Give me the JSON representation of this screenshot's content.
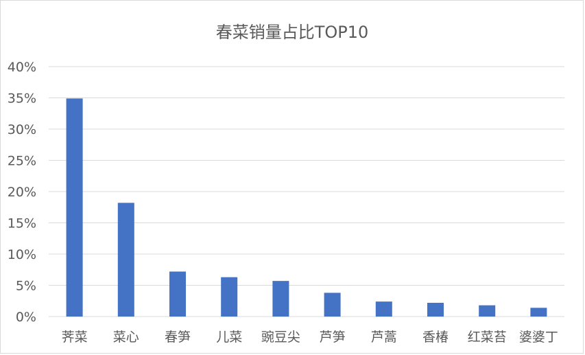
{
  "chart_data": {
    "type": "bar",
    "title": "春菜销量占比TOP10",
    "xlabel": "",
    "ylabel": "",
    "categories": [
      "荠菜",
      "菜心",
      "春笋",
      "儿菜",
      "豌豆尖",
      "芦笋",
      "芦蒿",
      "香椿",
      "红菜苔",
      "婆婆丁"
    ],
    "values": [
      0.349,
      0.182,
      0.072,
      0.063,
      0.057,
      0.038,
      0.024,
      0.022,
      0.018,
      0.014
    ],
    "ylim": [
      0,
      0.4
    ],
    "yticks": [
      "0%",
      "5%",
      "10%",
      "15%",
      "20%",
      "25%",
      "30%",
      "35%",
      "40%"
    ],
    "grid": true,
    "legend": "none",
    "colors": {
      "bar": "#4472C4",
      "grid": "#d9d9d9",
      "text": "#595959"
    }
  }
}
